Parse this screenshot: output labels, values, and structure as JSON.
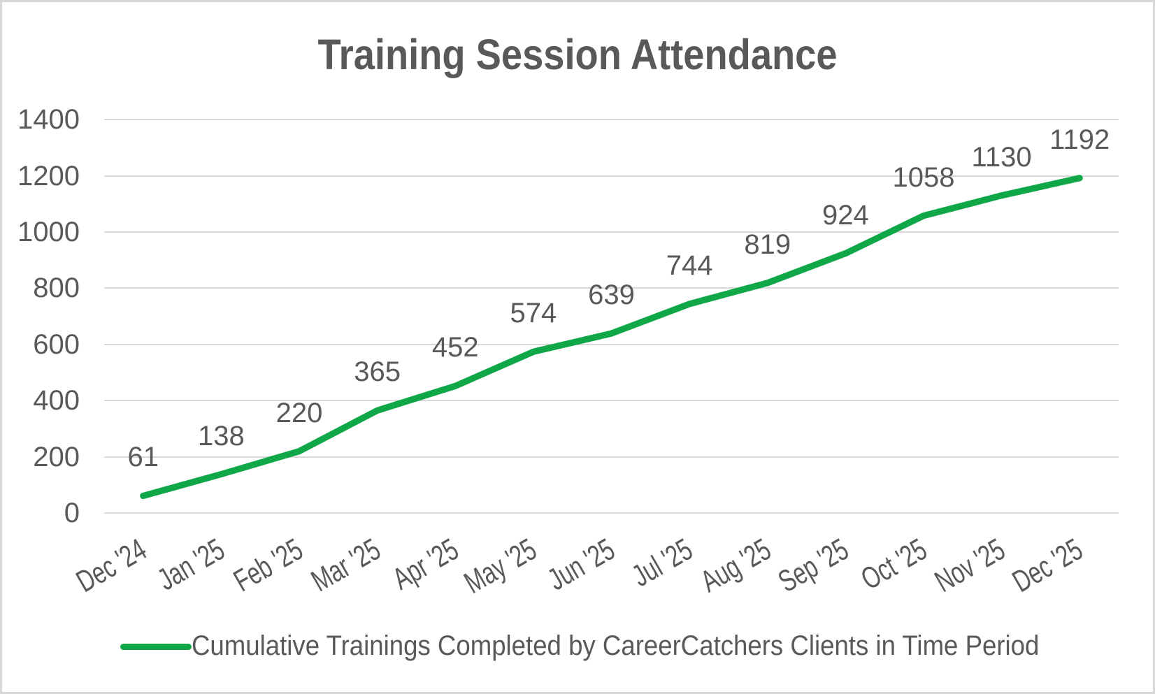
{
  "chart_data": {
    "type": "line",
    "title": "Training Session Attendance",
    "categories": [
      "Dec '24",
      "Jan '25",
      "Feb '25",
      "Mar '25",
      "Apr '25",
      "May '25",
      "Jun '25",
      "Jul '25",
      "Aug '25",
      "Sep '25",
      "Oct '25",
      "Nov '25",
      "Dec '25"
    ],
    "series": [
      {
        "name": "Cumulative Trainings Completed by CareerCatchers Clients in Time Period",
        "values": [
          61,
          138,
          220,
          365,
          452,
          574,
          639,
          744,
          819,
          924,
          1058,
          1130,
          1192
        ],
        "color": "#10a748"
      }
    ],
    "data_labels": [
      "61",
      "138",
      "220",
      "365",
      "452",
      "574",
      "639",
      "744",
      "819",
      "924",
      "1058",
      "1130",
      "1192"
    ],
    "xlabel": "",
    "ylabel": "",
    "ylim": [
      0,
      1400
    ],
    "ytick_step": 200,
    "ytick_labels": [
      "0",
      "200",
      "400",
      "600",
      "800",
      "1000",
      "1200",
      "1400"
    ],
    "grid": "horizontal",
    "legend_position": "bottom",
    "colors": {
      "series_green": "#10a748",
      "text_gray": "#595959",
      "gridline_gray": "#d9d9d9",
      "border_gray": "#d7d7d7",
      "background": "#ffffff"
    }
  }
}
